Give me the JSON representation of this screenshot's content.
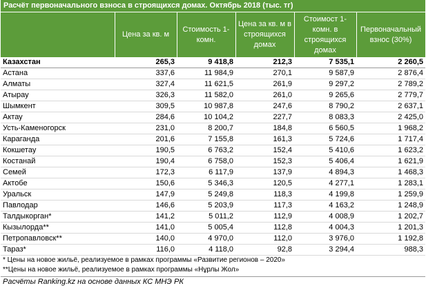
{
  "title": "Расчёт первоначального взноса в строящихся домах. Октябрь 2018 (тыс. тг)",
  "table": {
    "headers": [
      "Цена за кв. м",
      "Стоимость 1-комн.",
      "Цена за кв. м в строящихся домах",
      "Стоимост 1-комн. в строящихся домах",
      "Первоначальный взнос (30%)"
    ],
    "rows": [
      [
        "Казахстан",
        "265,3",
        "9 418,8",
        "212,3",
        "7 535,1",
        "2 260,5"
      ],
      [
        "Астана",
        "337,6",
        "11 984,9",
        "270,1",
        "9 587,9",
        "2 876,4"
      ],
      [
        "Алматы",
        "327,4",
        "11 621,5",
        "261,9",
        "9 297,2",
        "2 789,2"
      ],
      [
        "Атырау",
        "326,3",
        "11 582,0",
        "261,0",
        "9 265,6",
        "2 779,7"
      ],
      [
        "Шымкент",
        "309,5",
        "10 987,8",
        "247,6",
        "8 790,2",
        "2 637,1"
      ],
      [
        "Актау",
        "284,6",
        "10 104,2",
        "227,7",
        "8 083,3",
        "2 425,0"
      ],
      [
        "Усть-Каменогорск",
        "231,0",
        "8 200,7",
        "184,8",
        "6 560,5",
        "1 968,2"
      ],
      [
        "Караганда",
        "201,6",
        "7 155,8",
        "161,3",
        "5 724,6",
        "1 717,4"
      ],
      [
        "Кокшетау",
        "190,5",
        "6 763,2",
        "152,4",
        "5 410,6",
        "1 623,2"
      ],
      [
        "Костанай",
        "190,4",
        "6 758,0",
        "152,3",
        "5 406,4",
        "1 621,9"
      ],
      [
        "Семей",
        "172,3",
        "6 117,9",
        "137,9",
        "4 894,3",
        "1 468,3"
      ],
      [
        "Актобе",
        "150,6",
        "5 346,3",
        "120,5",
        "4 277,1",
        "1 283,1"
      ],
      [
        "Уральск",
        "147,9",
        "5 249,8",
        "118,3",
        "4 199,8",
        "1 259,9"
      ],
      [
        "Павлодар",
        "146,6",
        "5 203,9",
        "117,3",
        "4 163,2",
        "1 248,9"
      ],
      [
        "Талдыкорган*",
        "141,2",
        "5 011,2",
        "112,9",
        "4 008,9",
        "1 202,7"
      ],
      [
        "Кызылорда**",
        "141,0",
        "5 005,4",
        "112,8",
        "4 004,3",
        "1 201,3"
      ],
      [
        "Петропавловск**",
        "140,0",
        "4 970,0",
        "112,0",
        "3 976,0",
        "1 192,8"
      ],
      [
        "Тараз*",
        "116,0",
        "4 118,0",
        "92,8",
        "3 294,4",
        "988,3"
      ]
    ]
  },
  "footnotes": [
    "* Цены на новое жильё, реализуемое в рамках программы «Развитие регионов – 2020»",
    "**Цены на новое жильё, реализуемое в рамках программы «Нұрлы Жол»"
  ],
  "source": "Расчёты Ranking.kz на основе данных КС МНЭ РК"
}
